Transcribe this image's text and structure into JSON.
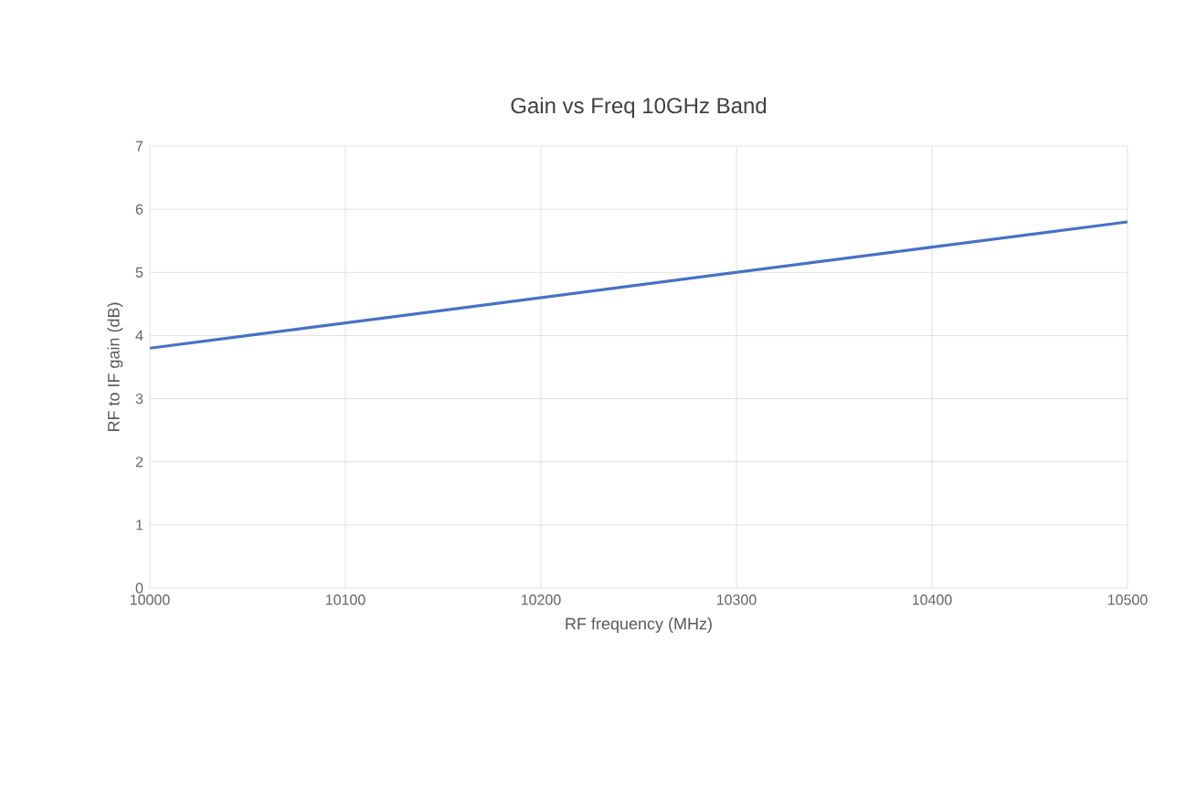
{
  "chart_data": {
    "type": "line",
    "title": "Gain vs Freq 10GHz Band",
    "xlabel": "RF frequency (MHz)",
    "ylabel": "RF to IF gain (dB)",
    "x": [
      10000,
      10500
    ],
    "series": [
      {
        "color": "#4472c4",
        "values": [
          3.8,
          5.8
        ]
      }
    ],
    "xlim": [
      10000,
      10500
    ],
    "xticks": [
      10000,
      10100,
      10200,
      10300,
      10400,
      10500
    ],
    "ylim": [
      0,
      7
    ],
    "yticks": [
      0,
      1,
      2,
      3,
      4,
      5,
      6,
      7
    ],
    "grid": true,
    "marker": "none",
    "line_style": "solid"
  }
}
